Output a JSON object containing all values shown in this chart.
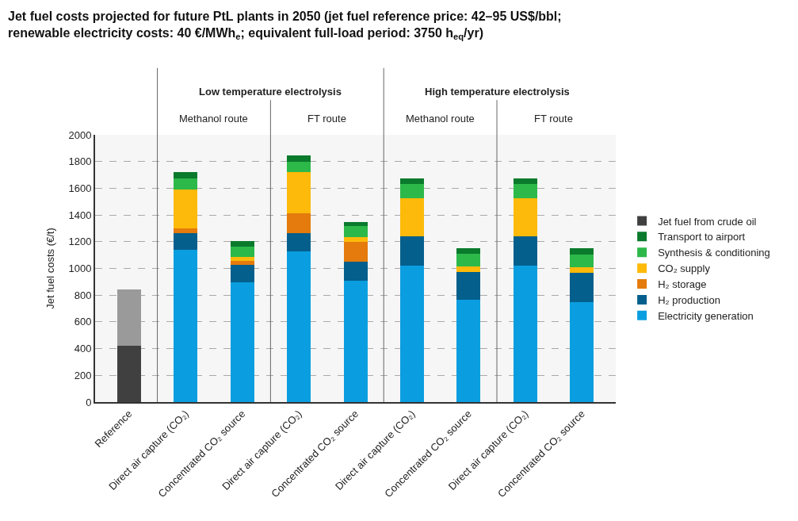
{
  "chart_data": {
    "type": "bar",
    "stacked": true,
    "title": "Jet fuel costs projected for future PtL plants in 2050 (jet fuel reference price: 42–95 US$/bbl;\nrenewable electricity costs: 40 €/MWh$_{e}$; equivalent full-load period: 3750 h$_{eq}$/yr)",
    "ylabel": "Jet fuel costs (€/t)",
    "categories": [
      "Reference",
      "Direct air capture (CO₂)",
      "Concentrated CO₂ source",
      "Direct air capture (CO₂)",
      "Concentrated CO₂ source",
      "Direct air capture (CO₂)",
      "Concentrated CO₂ source",
      "Direct air capture (CO₂)",
      "Concentrated CO₂ source"
    ],
    "series": [
      {
        "name": "Jet fuel from crude oil",
        "color": "#404040",
        "values": [
          420,
          0,
          0,
          0,
          0,
          0,
          0,
          0,
          0
        ]
      },
      {
        "color": "#9a9a9a",
        "values": [
          420,
          0,
          0,
          0,
          0,
          0,
          0,
          0,
          0
        ]
      },
      {
        "name": "Electricity generation",
        "color": "#0a9ee0",
        "values": [
          0,
          1140,
          895,
          1125,
          910,
          1020,
          765,
          1020,
          750
        ]
      },
      {
        "name": "H₂ production",
        "color": "#045f8c",
        "values": [
          0,
          125,
          130,
          140,
          140,
          220,
          210,
          220,
          215
        ]
      },
      {
        "name": "H₂ storage",
        "color": "#e47b0c",
        "values": [
          0,
          35,
          30,
          145,
          150,
          0,
          0,
          0,
          0
        ]
      },
      {
        "name": "CO₂ supply",
        "color": "#fdba0a",
        "values": [
          0,
          290,
          30,
          310,
          35,
          285,
          40,
          285,
          45
        ]
      },
      {
        "name": "Synthesis & conditioning",
        "color": "#2db84a",
        "values": [
          0,
          85,
          80,
          80,
          80,
          105,
          95,
          105,
          95
        ]
      },
      {
        "name": "Transport to airport",
        "color": "#0a7a2c",
        "values": [
          0,
          45,
          40,
          45,
          35,
          45,
          40,
          45,
          45
        ]
      }
    ],
    "ylim": [
      0,
      2000
    ],
    "yticks": [
      0,
      200,
      400,
      600,
      800,
      1000,
      1200,
      1400,
      1600,
      1800,
      2000
    ],
    "grid": "y",
    "legend": "right",
    "annotations": [
      "Low temperature electrolysis",
      "High temperature electrolysis",
      "Methanol route",
      "FT route",
      "Methanol route",
      "FT route"
    ]
  }
}
